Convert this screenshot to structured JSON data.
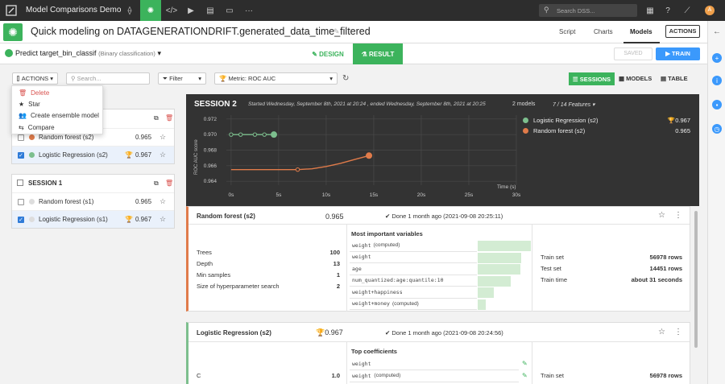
{
  "topbar": {
    "project": "Model Comparisons Demo",
    "search_placeholder": "Search DSS...",
    "avatar": "A"
  },
  "header": {
    "title": "Quick modeling on DATAGENERATIONDRIFT.generated_data_time_filtered",
    "tabs": [
      "Script",
      "Charts",
      "Models"
    ],
    "actions": "ACTIONS"
  },
  "subheader": {
    "predict": "Predict target_bin_classif",
    "kind": "(Binary classification)",
    "design": "DESIGN",
    "result": "RESULT",
    "saved": "SAVED",
    "train": "TRAIN"
  },
  "toolbar": {
    "actions": "ACTIONS",
    "search_placeholder": "Search...",
    "filter": "Filter",
    "metric": "Metric: ROC AUC",
    "sessions": "SESSIONS",
    "models": "MODELS",
    "table": "TABLE"
  },
  "menu": {
    "items": [
      "Delete",
      "Star",
      "Create ensemble model",
      "Compare"
    ]
  },
  "sessions": [
    {
      "title": "SESSION 2",
      "rows": [
        {
          "name": "Random forest (s2)",
          "score": "0.965",
          "checked": false,
          "color": "#e07b4a"
        },
        {
          "name": "Logistic Regression (s2)",
          "score": "0.967",
          "checked": true,
          "color": "#7dbf8e"
        }
      ]
    },
    {
      "title": "SESSION 1",
      "rows": [
        {
          "name": "Random forest (s1)",
          "score": "0.965",
          "checked": false,
          "color": "#ddd"
        },
        {
          "name": "Logistic Regression (s1)",
          "score": "0.967",
          "checked": true,
          "color": "#ddd"
        }
      ]
    }
  ],
  "session_panel": {
    "title": "SESSION 2",
    "started": "Started Wednesday, September 8th, 2021 at 20:24 , ended Wednesday, September 8th, 2021 at 20:25",
    "models": "2 models",
    "features": "7 / 14 Features"
  },
  "chart_data": {
    "type": "line",
    "ylabel": "ROC AUC score",
    "xlabel": "Time (s)",
    "ylim": [
      0.9635,
      0.9725
    ],
    "xlim": [
      -0.5,
      30
    ],
    "yticks": [
      "0.964",
      "0.966",
      "0.968",
      "0.970",
      "0.972"
    ],
    "xticks": [
      "0s",
      "5s",
      "10s",
      "15s",
      "20s",
      "25s",
      "30s"
    ],
    "series": [
      {
        "name": "Logistic Regression (s2)",
        "score": "0.967",
        "color": "#7dbf8e",
        "x": [
          0,
          1,
          2.5,
          3.5,
          4.5
        ],
        "y": [
          0.97,
          0.97,
          0.97,
          0.97,
          0.97
        ]
      },
      {
        "name": "Random forest (s2)",
        "score": "0.965",
        "color": "#e07b4a",
        "x": [
          0,
          7,
          8.5,
          10,
          11.5,
          13,
          14.5
        ],
        "y": [
          0.9655,
          0.9655,
          0.9656,
          0.9659,
          0.9663,
          0.9668,
          0.9673
        ]
      }
    ]
  },
  "rf": {
    "title": "Random forest (s2)",
    "score": "0.965",
    "done": "Done 1 month ago (2021-09-08 20:25:11)",
    "params": [
      {
        "k": "Trees",
        "v": "100"
      },
      {
        "k": "Depth",
        "v": "13"
      },
      {
        "k": "Min samples",
        "v": "1"
      },
      {
        "k": "Size of hyperparameter search",
        "v": "2"
      }
    ],
    "vars_title": "Most important variables",
    "vars": [
      {
        "name": "weight",
        "note": "(computed)",
        "w": 1.0
      },
      {
        "name": "weight",
        "note": "",
        "w": 0.82
      },
      {
        "name": "age",
        "note": "",
        "w": 0.8
      },
      {
        "name": "num_quantized:age:quantile:10",
        "note": "",
        "w": 0.62
      },
      {
        "name": "weight+happiness",
        "note": "",
        "w": 0.3
      },
      {
        "name": "weight+money",
        "note": "(computed)",
        "w": 0.15
      }
    ],
    "train": [
      {
        "k": "Train set",
        "v": "56978 rows"
      },
      {
        "k": "Test set",
        "v": "14451 rows"
      },
      {
        "k": "Train time",
        "v": "about 31 seconds"
      }
    ]
  },
  "lr": {
    "title": "Logistic Regression (s2)",
    "score": "0.967",
    "done": "Done 1 month ago (2021-09-08 20:24:56)",
    "coef_title": "Top coefficients",
    "coefs": [
      {
        "name": "weight",
        "note": ""
      },
      {
        "name": "weight",
        "note": "(computed)"
      }
    ],
    "param_k": "C",
    "param_v": "1.0",
    "train_k": "Train set",
    "train_v": "56978 rows"
  }
}
